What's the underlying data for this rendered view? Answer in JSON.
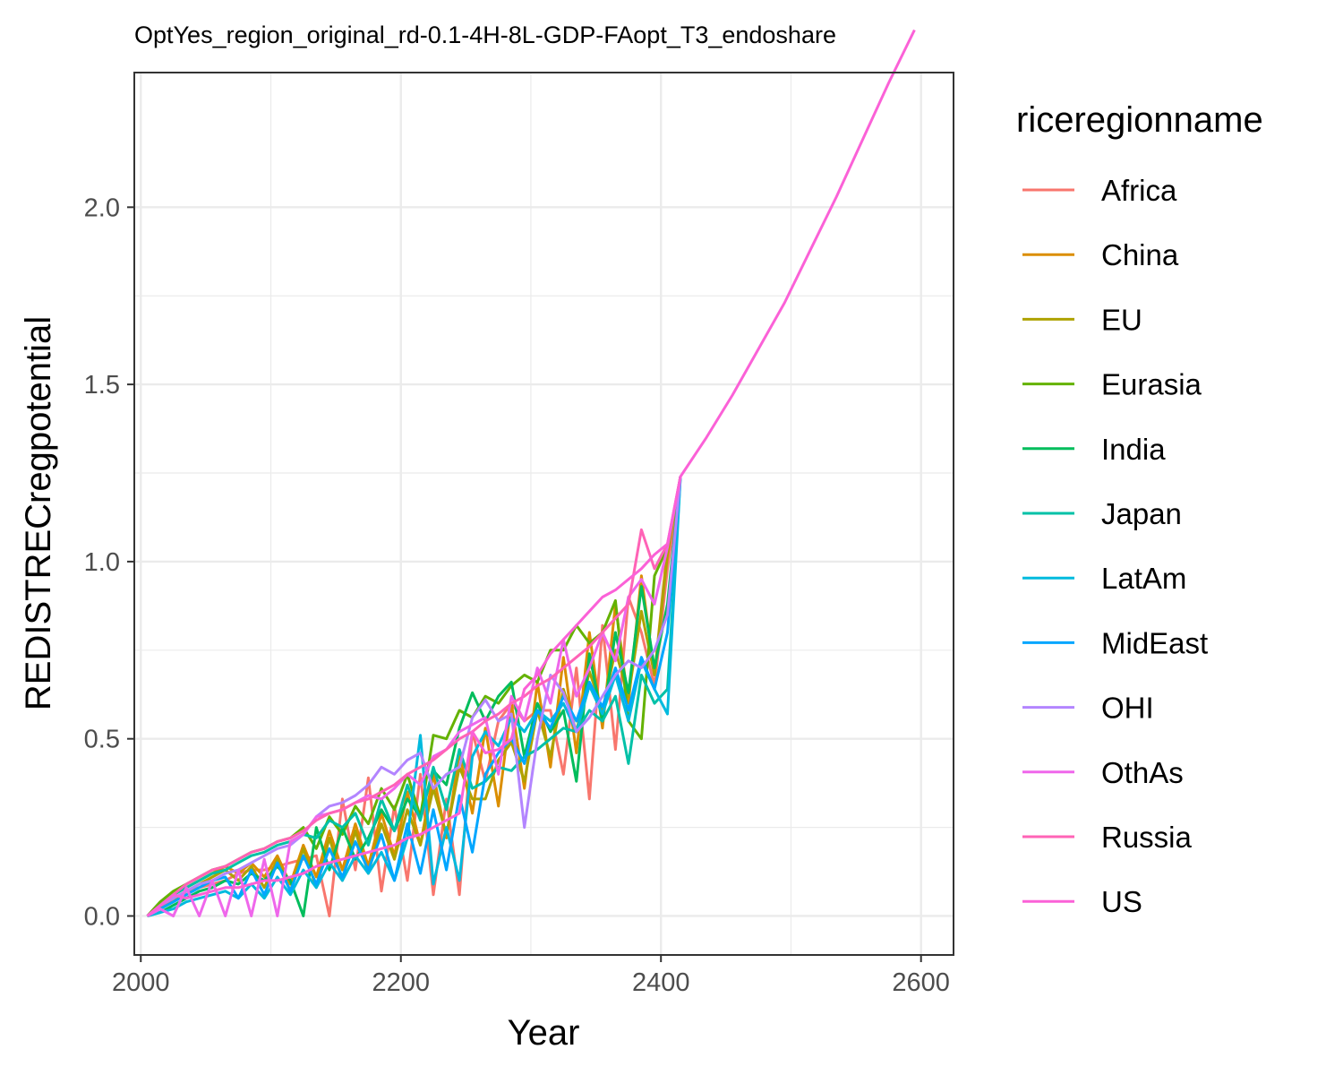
{
  "chart_data": {
    "type": "line",
    "title": "OptYes_region_original_rd-0.1-4H-8L-GDP-FAopt_T3_endoshare",
    "xlabel": "Year",
    "ylabel": "REDISTRECregpotential",
    "xlim": [
      1995,
      2625
    ],
    "ylim": [
      -0.11,
      2.38
    ],
    "xticks": [
      2000,
      2200,
      2400,
      2600
    ],
    "xtick_labels": [
      "2000",
      "2200",
      "2400",
      "2600"
    ],
    "yticks": [
      0.0,
      0.5,
      1.0,
      1.5,
      2.0
    ],
    "ytick_labels": [
      "0.0",
      "0.5",
      "1.0",
      "1.5",
      "2.0"
    ],
    "grid": true,
    "legend_position": "right",
    "legend_title": "riceregionname",
    "series": [
      {
        "name": "Africa",
        "color": "#F8766D",
        "x": [
          2005,
          2015,
          2025,
          2035,
          2045,
          2055,
          2065,
          2075,
          2085,
          2095,
          2105,
          2115,
          2125,
          2135,
          2145,
          2155,
          2165,
          2175,
          2185,
          2195,
          2205,
          2215,
          2225,
          2235,
          2245,
          2255,
          2265,
          2275,
          2285,
          2295,
          2305,
          2315,
          2325,
          2335,
          2345,
          2355,
          2365,
          2375,
          2385,
          2395,
          2405,
          2415
        ],
        "y": [
          0.0,
          0.02,
          0.05,
          0.07,
          0.08,
          0.09,
          0.1,
          0.12,
          0.13,
          0.13,
          0.14,
          0.15,
          0.16,
          0.17,
          0.0,
          0.33,
          0.13,
          0.39,
          0.07,
          0.31,
          0.1,
          0.4,
          0.06,
          0.33,
          0.06,
          0.52,
          0.38,
          0.55,
          0.6,
          0.55,
          0.58,
          0.58,
          0.4,
          0.7,
          0.33,
          0.82,
          0.47,
          0.9,
          0.8,
          0.65,
          0.98,
          1.24
        ]
      },
      {
        "name": "China",
        "color": "#DB8E00",
        "x": [
          2005,
          2015,
          2025,
          2035,
          2045,
          2055,
          2065,
          2075,
          2085,
          2095,
          2105,
          2115,
          2125,
          2135,
          2145,
          2155,
          2165,
          2175,
          2185,
          2195,
          2205,
          2215,
          2225,
          2235,
          2245,
          2255,
          2265,
          2275,
          2285,
          2295,
          2305,
          2315,
          2325,
          2335,
          2345,
          2355,
          2365,
          2375,
          2385,
          2395,
          2405,
          2415
        ],
        "y": [
          0.0,
          0.03,
          0.06,
          0.08,
          0.1,
          0.12,
          0.14,
          0.12,
          0.15,
          0.11,
          0.17,
          0.09,
          0.2,
          0.11,
          0.24,
          0.13,
          0.26,
          0.14,
          0.29,
          0.17,
          0.35,
          0.2,
          0.4,
          0.22,
          0.46,
          0.29,
          0.53,
          0.31,
          0.6,
          0.36,
          0.66,
          0.42,
          0.73,
          0.46,
          0.8,
          0.53,
          0.88,
          0.6,
          0.96,
          0.68,
          1.04,
          1.24
        ]
      },
      {
        "name": "EU",
        "color": "#AEA200",
        "x": [
          2005,
          2015,
          2025,
          2035,
          2045,
          2055,
          2065,
          2075,
          2085,
          2095,
          2105,
          2115,
          2125,
          2135,
          2145,
          2155,
          2165,
          2175,
          2185,
          2195,
          2205,
          2215,
          2225,
          2235,
          2245,
          2255,
          2265,
          2275,
          2285,
          2295,
          2305,
          2315,
          2325,
          2335,
          2345,
          2355,
          2365,
          2375,
          2385,
          2395,
          2405,
          2415
        ],
        "y": [
          0.0,
          0.02,
          0.04,
          0.07,
          0.09,
          0.11,
          0.13,
          0.1,
          0.14,
          0.08,
          0.16,
          0.07,
          0.19,
          0.08,
          0.22,
          0.1,
          0.24,
          0.12,
          0.26,
          0.16,
          0.3,
          0.2,
          0.36,
          0.23,
          0.42,
          0.33,
          0.33,
          0.44,
          0.49,
          0.38,
          0.58,
          0.45,
          0.64,
          0.52,
          0.69,
          0.58,
          0.75,
          0.62,
          0.86,
          0.68,
          1.02,
          1.24
        ]
      },
      {
        "name": "Eurasia",
        "color": "#64B200",
        "x": [
          2005,
          2015,
          2025,
          2035,
          2045,
          2055,
          2065,
          2075,
          2085,
          2095,
          2105,
          2115,
          2125,
          2135,
          2145,
          2155,
          2165,
          2175,
          2185,
          2195,
          2205,
          2215,
          2225,
          2235,
          2245,
          2255,
          2265,
          2275,
          2285,
          2295,
          2305,
          2315,
          2325,
          2335,
          2345,
          2355,
          2365,
          2375,
          2385,
          2395,
          2405,
          2415
        ],
        "y": [
          0.0,
          0.04,
          0.07,
          0.09,
          0.11,
          0.13,
          0.14,
          0.16,
          0.18,
          0.19,
          0.21,
          0.22,
          0.25,
          0.19,
          0.28,
          0.23,
          0.31,
          0.26,
          0.36,
          0.3,
          0.4,
          0.28,
          0.51,
          0.5,
          0.58,
          0.56,
          0.62,
          0.6,
          0.65,
          0.68,
          0.66,
          0.75,
          0.75,
          0.82,
          0.77,
          0.8,
          0.89,
          0.55,
          0.5,
          0.96,
          1.04,
          1.24
        ]
      },
      {
        "name": "India",
        "color": "#00BD5C",
        "x": [
          2005,
          2015,
          2025,
          2035,
          2045,
          2055,
          2065,
          2075,
          2085,
          2095,
          2105,
          2115,
          2125,
          2135,
          2145,
          2155,
          2165,
          2175,
          2185,
          2195,
          2205,
          2215,
          2225,
          2235,
          2245,
          2255,
          2265,
          2275,
          2285,
          2295,
          2305,
          2315,
          2325,
          2335,
          2345,
          2355,
          2365,
          2375,
          2385,
          2395,
          2405,
          2415
        ],
        "y": [
          0.0,
          0.01,
          0.03,
          0.05,
          0.07,
          0.08,
          0.1,
          0.09,
          0.12,
          0.1,
          0.14,
          0.1,
          0.0,
          0.25,
          0.13,
          0.25,
          0.16,
          0.22,
          0.3,
          0.24,
          0.33,
          0.28,
          0.41,
          0.37,
          0.53,
          0.63,
          0.55,
          0.62,
          0.66,
          0.45,
          0.6,
          0.52,
          0.58,
          0.38,
          0.74,
          0.55,
          0.8,
          0.63,
          0.93,
          0.7,
          0.88,
          1.24
        ]
      },
      {
        "name": "Japan",
        "color": "#00C1A7",
        "x": [
          2005,
          2015,
          2025,
          2035,
          2045,
          2055,
          2065,
          2075,
          2085,
          2095,
          2105,
          2115,
          2125,
          2135,
          2145,
          2155,
          2165,
          2175,
          2185,
          2195,
          2205,
          2215,
          2225,
          2235,
          2245,
          2255,
          2265,
          2275,
          2285,
          2295,
          2305,
          2315,
          2325,
          2335,
          2345,
          2355,
          2365,
          2375,
          2385,
          2395,
          2405,
          2415
        ],
        "y": [
          0.0,
          0.03,
          0.06,
          0.08,
          0.1,
          0.12,
          0.13,
          0.15,
          0.17,
          0.18,
          0.2,
          0.21,
          0.23,
          0.22,
          0.27,
          0.25,
          0.29,
          0.2,
          0.33,
          0.24,
          0.37,
          0.27,
          0.42,
          0.3,
          0.47,
          0.36,
          0.38,
          0.42,
          0.41,
          0.45,
          0.47,
          0.5,
          0.53,
          0.52,
          0.58,
          0.55,
          0.62,
          0.43,
          0.68,
          0.6,
          0.64,
          1.24
        ]
      },
      {
        "name": "LatAm",
        "color": "#00BADE",
        "x": [
          2005,
          2015,
          2025,
          2035,
          2045,
          2055,
          2065,
          2075,
          2085,
          2095,
          2105,
          2115,
          2125,
          2135,
          2145,
          2155,
          2165,
          2175,
          2185,
          2195,
          2205,
          2215,
          2225,
          2235,
          2245,
          2255,
          2265,
          2275,
          2285,
          2295,
          2305,
          2315,
          2325,
          2335,
          2345,
          2355,
          2365,
          2375,
          2385,
          2395,
          2405,
          2415
        ],
        "y": [
          0.0,
          0.01,
          0.02,
          0.04,
          0.05,
          0.06,
          0.07,
          0.05,
          0.09,
          0.05,
          0.11,
          0.06,
          0.13,
          0.08,
          0.15,
          0.1,
          0.17,
          0.12,
          0.18,
          0.1,
          0.22,
          0.51,
          0.09,
          0.25,
          0.1,
          0.45,
          0.52,
          0.48,
          0.56,
          0.52,
          0.58,
          0.55,
          0.6,
          0.52,
          0.65,
          0.57,
          0.68,
          0.55,
          0.72,
          0.64,
          0.57,
          1.24
        ]
      },
      {
        "name": "MidEast",
        "color": "#00A6FF",
        "x": [
          2005,
          2015,
          2025,
          2035,
          2045,
          2055,
          2065,
          2075,
          2085,
          2095,
          2105,
          2115,
          2125,
          2135,
          2145,
          2155,
          2165,
          2175,
          2185,
          2195,
          2205,
          2215,
          2225,
          2235,
          2245,
          2255,
          2265,
          2275,
          2285,
          2295,
          2305,
          2315,
          2325,
          2335,
          2345,
          2355,
          2365,
          2375,
          2385,
          2395,
          2405,
          2415
        ],
        "y": [
          0.0,
          0.02,
          0.04,
          0.06,
          0.08,
          0.1,
          0.11,
          0.05,
          0.13,
          0.06,
          0.15,
          0.07,
          0.17,
          0.09,
          0.19,
          0.11,
          0.21,
          0.13,
          0.23,
          0.1,
          0.26,
          0.12,
          0.3,
          0.13,
          0.34,
          0.18,
          0.4,
          0.46,
          0.5,
          0.43,
          0.58,
          0.53,
          0.62,
          0.55,
          0.66,
          0.59,
          0.7,
          0.58,
          0.73,
          0.64,
          0.8,
          1.24
        ]
      },
      {
        "name": "OHI",
        "color": "#B385FF",
        "x": [
          2005,
          2015,
          2025,
          2035,
          2045,
          2055,
          2065,
          2075,
          2085,
          2095,
          2105,
          2115,
          2125,
          2135,
          2145,
          2155,
          2165,
          2175,
          2185,
          2195,
          2205,
          2215,
          2225,
          2235,
          2245,
          2255,
          2265,
          2275,
          2285,
          2295,
          2305,
          2315,
          2325,
          2335,
          2345,
          2355,
          2365,
          2375,
          2385,
          2395,
          2405,
          2415
        ],
        "y": [
          0.0,
          0.03,
          0.05,
          0.07,
          0.09,
          0.1,
          0.12,
          0.13,
          0.15,
          0.17,
          0.19,
          0.2,
          0.23,
          0.28,
          0.31,
          0.32,
          0.34,
          0.37,
          0.42,
          0.4,
          0.44,
          0.46,
          0.36,
          0.4,
          0.42,
          0.56,
          0.61,
          0.55,
          0.57,
          0.25,
          0.5,
          0.68,
          0.63,
          0.52,
          0.56,
          0.62,
          0.68,
          0.72,
          0.7,
          0.75,
          0.85,
          1.24
        ]
      },
      {
        "name": "OthAs",
        "color": "#EF67EB",
        "x": [
          2005,
          2015,
          2025,
          2035,
          2045,
          2055,
          2065,
          2075,
          2085,
          2095,
          2105,
          2115,
          2125,
          2135,
          2145,
          2155,
          2165,
          2175,
          2185,
          2195,
          2205,
          2215,
          2225,
          2235,
          2245,
          2255,
          2265,
          2275,
          2285,
          2295,
          2305,
          2315,
          2325,
          2335,
          2345,
          2355,
          2365,
          2375,
          2385,
          2395,
          2405,
          2415
        ],
        "y": [
          0.0,
          0.02,
          0.0,
          0.08,
          0.0,
          0.1,
          0.0,
          0.13,
          0.0,
          0.16,
          0.0,
          0.21,
          0.23,
          0.28,
          0.29,
          0.3,
          0.32,
          0.34,
          0.33,
          0.36,
          0.4,
          0.37,
          0.45,
          0.47,
          0.52,
          0.54,
          0.56,
          0.4,
          0.62,
          0.55,
          0.7,
          0.6,
          0.78,
          0.62,
          0.7,
          0.8,
          0.72,
          0.9,
          0.95,
          0.88,
          1.04,
          1.24
        ]
      },
      {
        "name": "Russia",
        "color": "#FF63B6",
        "x": [
          2005,
          2015,
          2025,
          2035,
          2045,
          2055,
          2065,
          2075,
          2085,
          2095,
          2105,
          2115,
          2125,
          2135,
          2145,
          2155,
          2165,
          2175,
          2185,
          2195,
          2205,
          2215,
          2225,
          2235,
          2245,
          2255,
          2265,
          2275,
          2285,
          2295,
          2305,
          2315,
          2325,
          2335,
          2345,
          2355,
          2365,
          2375,
          2385,
          2395,
          2405,
          2415
        ],
        "y": [
          0.0,
          0.03,
          0.06,
          0.09,
          0.11,
          0.13,
          0.14,
          0.16,
          0.18,
          0.19,
          0.21,
          0.22,
          0.24,
          0.27,
          0.29,
          0.3,
          0.32,
          0.33,
          0.35,
          0.37,
          0.4,
          0.42,
          0.44,
          0.47,
          0.5,
          0.52,
          0.55,
          0.57,
          0.6,
          0.62,
          0.65,
          0.67,
          0.7,
          0.73,
          0.76,
          0.8,
          0.84,
          0.88,
          1.09,
          0.98,
          1.05,
          1.24
        ]
      },
      {
        "name": "US",
        "color": "#FB61D7",
        "x": [
          2005,
          2015,
          2025,
          2035,
          2045,
          2055,
          2065,
          2075,
          2085,
          2095,
          2105,
          2115,
          2125,
          2135,
          2145,
          2155,
          2165,
          2175,
          2185,
          2195,
          2205,
          2215,
          2225,
          2235,
          2245,
          2255,
          2265,
          2275,
          2285,
          2295,
          2305,
          2315,
          2325,
          2335,
          2345,
          2355,
          2365,
          2375,
          2385,
          2395,
          2405,
          2415,
          2435,
          2455,
          2475,
          2495,
          2515,
          2535,
          2555,
          2575,
          2595
        ],
        "y": [
          0.0,
          0.03,
          0.06,
          0.05,
          0.06,
          0.07,
          0.08,
          0.08,
          0.09,
          0.1,
          0.1,
          0.11,
          0.12,
          0.14,
          0.15,
          0.16,
          0.17,
          0.18,
          0.19,
          0.2,
          0.22,
          0.23,
          0.25,
          0.27,
          0.29,
          0.52,
          0.46,
          0.47,
          0.5,
          0.64,
          0.68,
          0.74,
          0.78,
          0.82,
          0.86,
          0.9,
          0.92,
          0.95,
          0.98,
          1.02,
          1.05,
          1.24,
          1.35,
          1.47,
          1.6,
          1.73,
          1.88,
          2.03,
          2.19,
          2.35,
          2.5
        ]
      }
    ]
  }
}
